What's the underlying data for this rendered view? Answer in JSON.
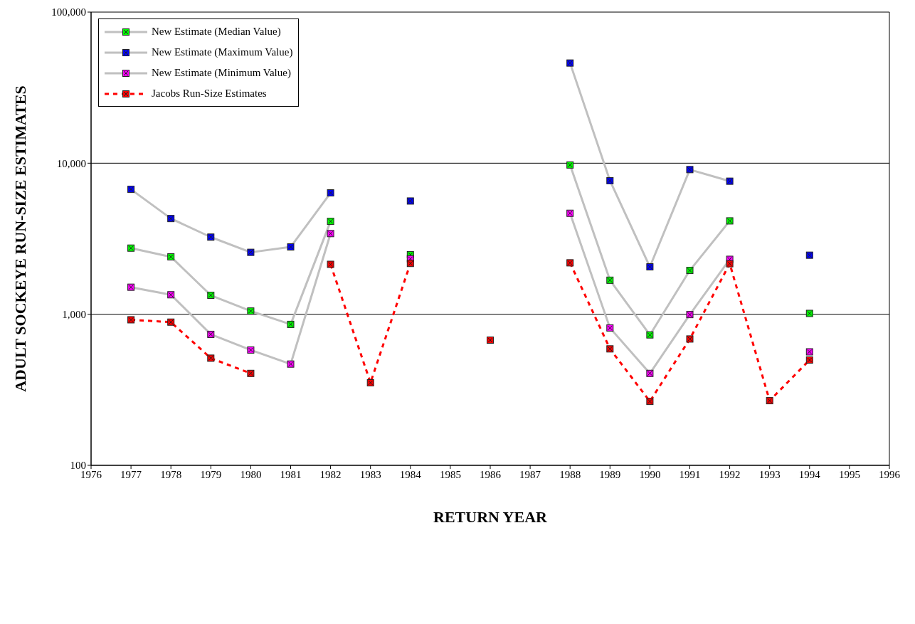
{
  "chart_data": {
    "type": "line",
    "xlabel": "RETURN YEAR",
    "ylabel": "ADULT SOCKEYE RUN-SIZE ESTIMATES",
    "log": "y",
    "grid": "y",
    "legend": "top left",
    "marker": "square",
    "x": [
      1977,
      1978,
      1979,
      1980,
      1981,
      1982,
      1983,
      1984,
      1985,
      1986,
      1987,
      1988,
      1989,
      1990,
      1991,
      1992,
      1993,
      1994
    ],
    "xlim": [
      1976,
      1996
    ],
    "xticks": [
      1976,
      1977,
      1978,
      1979,
      1980,
      1981,
      1982,
      1983,
      1984,
      1985,
      1986,
      1987,
      1988,
      1989,
      1990,
      1991,
      1992,
      1993,
      1994,
      1995,
      1996
    ],
    "ylim": [
      100,
      100000
    ],
    "yticks": [
      100,
      {
        "value": 1000,
        "label": "1,000"
      },
      {
        "value": 10000,
        "label": "10,000"
      },
      {
        "value": 100000,
        "label": "100,000"
      }
    ],
    "series": [
      {
        "name": "New Estimate (Median Value)",
        "color": "#00ff00",
        "line_style": "solid",
        "values": [
          2740,
          2400,
          1335,
          1050,
          857,
          4120,
          null,
          2480,
          null,
          null,
          null,
          9730,
          1680,
          730,
          1950,
          4150,
          null,
          1013
        ]
      },
      {
        "name": "New Estimate (Maximum Value)",
        "color": "#0000ff",
        "line_style": "solid",
        "values": [
          6710,
          4300,
          3240,
          2570,
          2790,
          6360,
          null,
          5620,
          null,
          null,
          null,
          46000,
          7660,
          2060,
          9070,
          7600,
          null,
          2460
        ]
      },
      {
        "name": "New Estimate (Minimum Value)",
        "color": "#ff00ff",
        "line_style": "solid",
        "values": [
          1510,
          1346,
          736,
          580,
          468,
          3420,
          null,
          2330,
          null,
          null,
          null,
          4660,
          812,
          406,
          995,
          2310,
          null,
          564
        ]
      },
      {
        "name": "Jacobs Run-Size Estimates",
        "color": "#ff0000",
        "line_style": "dashed",
        "values": [
          919,
          887,
          512,
          406,
          null,
          2140,
          352,
          2170,
          null,
          674,
          null,
          2190,
          590,
          265,
          686,
          2160,
          268,
          498
        ]
      }
    ]
  }
}
